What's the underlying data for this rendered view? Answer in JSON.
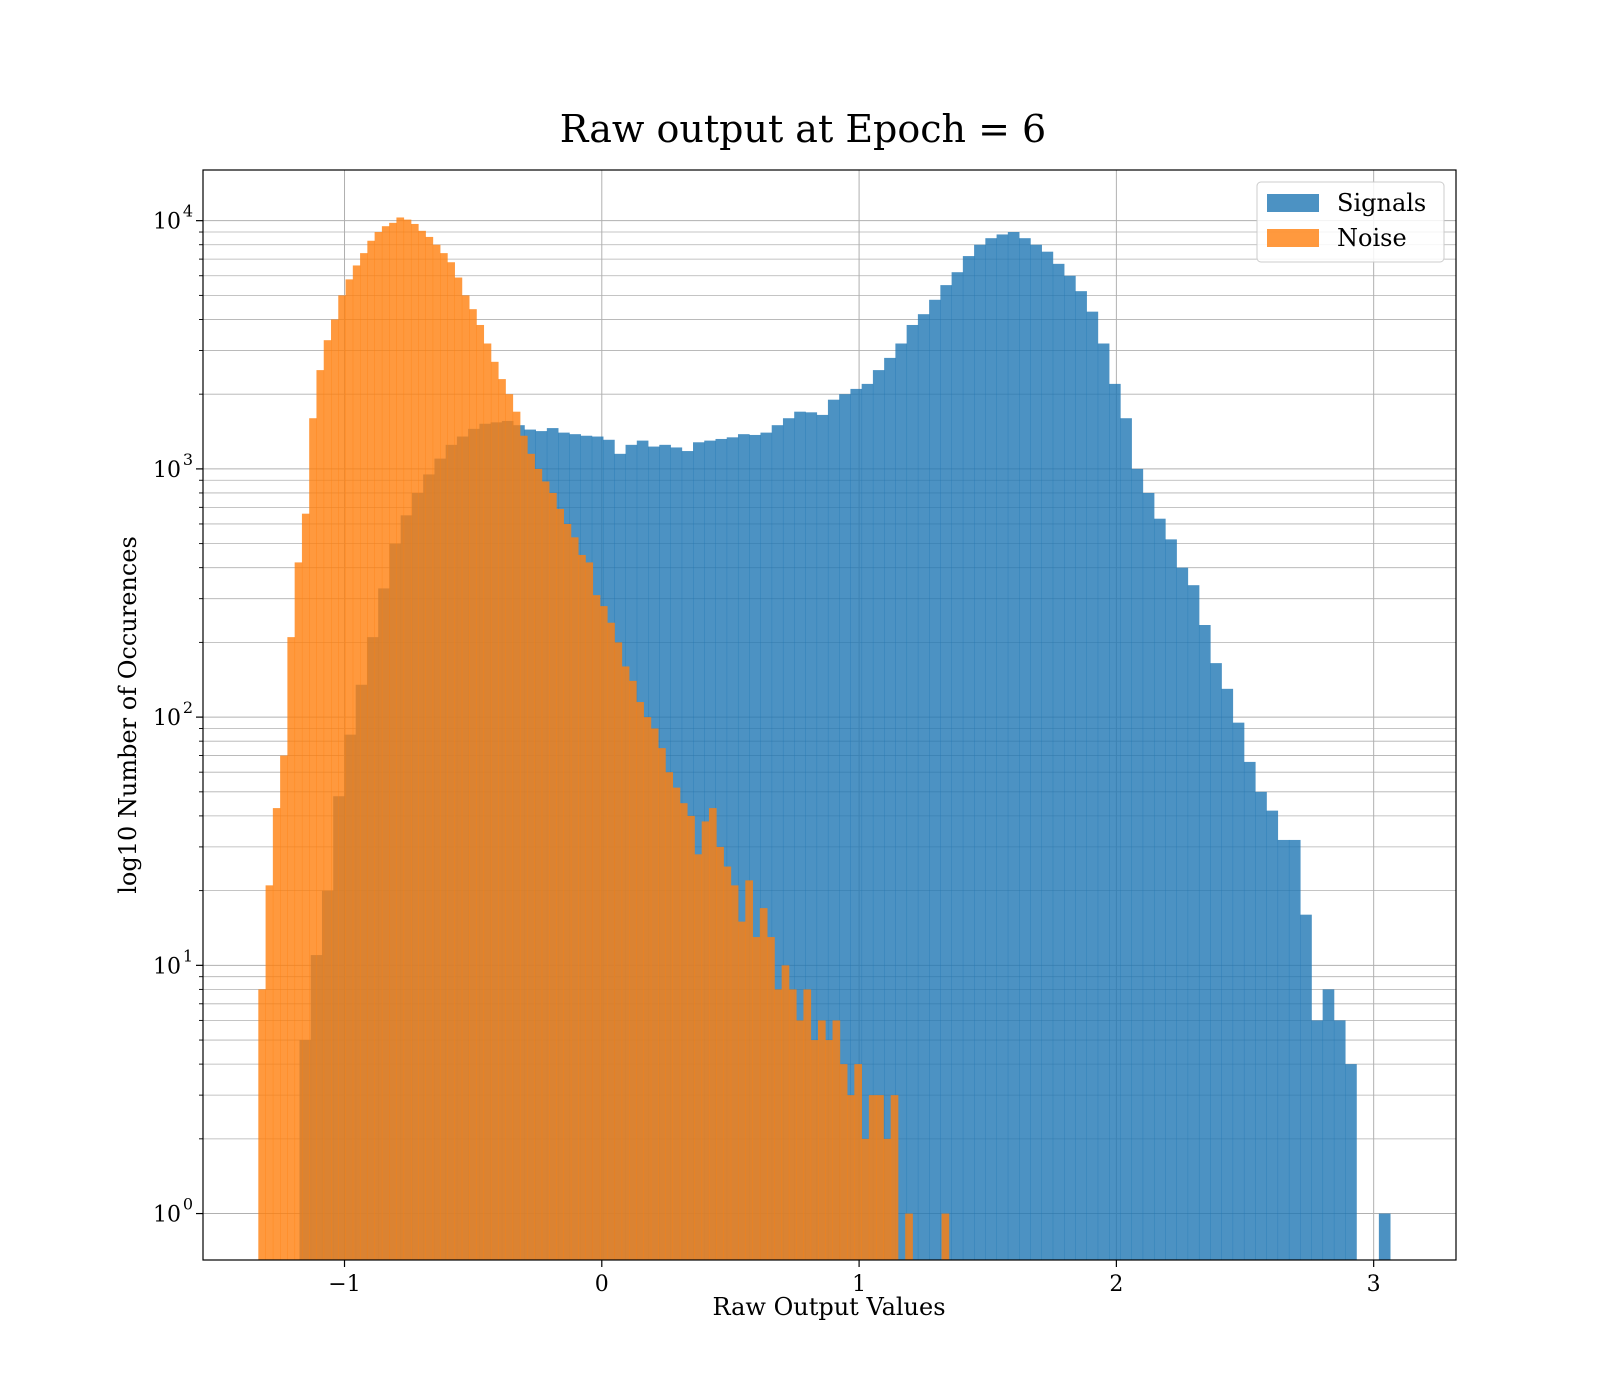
{
  "chart_data": {
    "type": "histogram",
    "title": "Raw output at Epoch = 6",
    "xlabel": "Raw Output Values",
    "ylabel": "log10 Number of Occurences",
    "xlim": [
      -1.55,
      3.32
    ],
    "ylim": [
      0.65,
      16000
    ],
    "yscale": "log",
    "grid": true,
    "legend_position": "top-right",
    "x_ticks": [
      {
        "value": -1,
        "label": "−1"
      },
      {
        "value": 0,
        "label": "0"
      },
      {
        "value": 1,
        "label": "1"
      },
      {
        "value": 2,
        "label": "2"
      },
      {
        "value": 3,
        "label": "3"
      }
    ],
    "y_ticks": [
      {
        "value": 1,
        "base": "10",
        "exp": "0"
      },
      {
        "value": 10,
        "base": "10",
        "exp": "1"
      },
      {
        "value": 100,
        "base": "10",
        "exp": "2"
      },
      {
        "value": 1000,
        "base": "10",
        "exp": "3"
      },
      {
        "value": 10000,
        "base": "10",
        "exp": "4"
      }
    ],
    "series": [
      {
        "name": "Signals",
        "color": "#1f77b4",
        "opacity": 0.8,
        "bin_width": 0.0437,
        "bin_start": -1.175,
        "values": [
          5,
          11,
          20,
          48,
          85,
          135,
          210,
          330,
          500,
          650,
          800,
          950,
          1100,
          1250,
          1350,
          1450,
          1520,
          1540,
          1560,
          1500,
          1440,
          1420,
          1460,
          1400,
          1380,
          1360,
          1350,
          1310,
          1150,
          1250,
          1300,
          1230,
          1250,
          1220,
          1180,
          1280,
          1300,
          1320,
          1340,
          1380,
          1370,
          1400,
          1500,
          1600,
          1700,
          1690,
          1650,
          1900,
          2000,
          2100,
          2200,
          2500,
          2800,
          3200,
          3800,
          4200,
          4800,
          5500,
          6200,
          7200,
          8000,
          8500,
          8800,
          9000,
          8500,
          8000,
          7500,
          6700,
          6000,
          5200,
          4300,
          3200,
          2200,
          1600,
          1000,
          800,
          630,
          520,
          400,
          340,
          235,
          165,
          130,
          95,
          66,
          50,
          42,
          32,
          32,
          16,
          6,
          8,
          6,
          4,
          0,
          0,
          1
        ]
      },
      {
        "name": "Noise",
        "color": "#ff7f0e",
        "opacity": 0.8,
        "bin_width": 0.02825,
        "bin_start": -1.335,
        "values": [
          8,
          21,
          43,
          70,
          210,
          420,
          660,
          1600,
          2500,
          3300,
          4000,
          5000,
          5800,
          6600,
          7400,
          8300,
          9000,
          9500,
          9800,
          10300,
          10100,
          9700,
          9100,
          8600,
          8000,
          7400,
          6800,
          5900,
          5000,
          4400,
          3800,
          3200,
          2700,
          2300,
          2000,
          1700,
          1360,
          1150,
          1000,
          890,
          800,
          690,
          600,
          530,
          450,
          420,
          310,
          280,
          240,
          200,
          160,
          140,
          115,
          100,
          90,
          75,
          60,
          52,
          45,
          40,
          28,
          38,
          43,
          30,
          25,
          21,
          15,
          22,
          13,
          17,
          13,
          8,
          10,
          8,
          6,
          8,
          5,
          6,
          5,
          6,
          4,
          3,
          4,
          2,
          3,
          3,
          2,
          3,
          0,
          1,
          0,
          0,
          0,
          0,
          1
        ]
      }
    ]
  }
}
